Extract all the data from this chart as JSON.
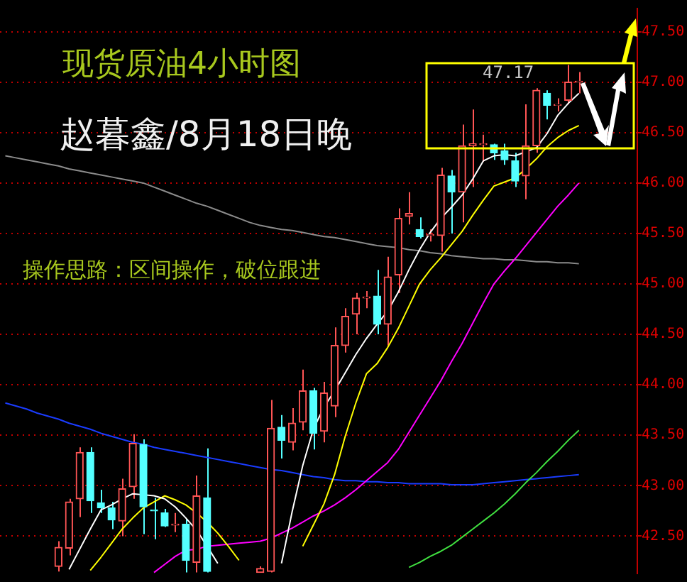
{
  "chart_data": {
    "type": "candlestick",
    "title": "现货原油4小时图",
    "subtitle": "赵暮鑫/8月18日晚",
    "annotations": [
      "操作思路：区间操作，破位跟进",
      "47.17"
    ],
    "categories": [
      null,
      null,
      null,
      null,
      null,
      null,
      null,
      null,
      null,
      null,
      null,
      null,
      null,
      null,
      null,
      null,
      null,
      null,
      null,
      null,
      null,
      null,
      null,
      null,
      null,
      null,
      null,
      null,
      null,
      null,
      null,
      null,
      null,
      null,
      null,
      null,
      null,
      null,
      null,
      null,
      null,
      null,
      null,
      null,
      null,
      null,
      null,
      null,
      null,
      null,
      null,
      null,
      null,
      null,
      null,
      null,
      null,
      null,
      null,
      null
    ],
    "ohlc": [
      null,
      null,
      null,
      null,
      null,
      [
        42.2,
        42.45,
        42.15,
        42.39
      ],
      [
        42.38,
        42.87,
        42.31,
        42.84
      ],
      [
        42.87,
        43.38,
        42.69,
        43.33
      ],
      [
        43.33,
        43.38,
        42.73,
        42.85
      ],
      [
        42.83,
        42.96,
        42.73,
        42.78
      ],
      [
        42.78,
        42.84,
        42.57,
        42.66
      ],
      [
        42.65,
        43.07,
        42.5,
        42.97
      ],
      [
        42.99,
        43.51,
        42.87,
        43.42
      ],
      [
        43.41,
        43.46,
        42.52,
        42.79
      ],
      [
        42.76,
        42.88,
        42.47,
        42.75
      ],
      [
        42.73,
        42.77,
        42.59,
        42.6
      ],
      [
        42.61,
        42.73,
        42.54,
        42.62
      ],
      [
        42.62,
        42.67,
        42.14,
        42.26
      ],
      [
        42.24,
        43.1,
        42.14,
        42.9
      ],
      [
        42.88,
        43.37,
        42.14,
        42.15
      ],
      null,
      null,
      null,
      null,
      [
        42.14,
        42.2,
        42.14,
        42.18
      ],
      [
        42.15,
        43.85,
        42.14,
        43.57
      ],
      [
        43.58,
        43.7,
        43.27,
        43.45
      ],
      [
        43.43,
        43.77,
        43.35,
        43.62
      ],
      [
        43.63,
        44.15,
        43.55,
        43.94
      ],
      [
        43.94,
        43.97,
        43.36,
        43.52
      ],
      [
        43.54,
        44.03,
        43.43,
        43.92
      ],
      [
        43.79,
        44.57,
        43.68,
        44.39
      ],
      [
        44.39,
        44.76,
        44.32,
        44.68
      ],
      [
        44.7,
        44.91,
        44.5,
        44.86
      ],
      [
        44.86,
        44.93,
        44.76,
        44.87
      ],
      [
        44.88,
        45.14,
        44.5,
        44.6
      ],
      [
        44.6,
        45.27,
        44.39,
        45.07
      ],
      [
        45.09,
        45.75,
        44.91,
        45.65
      ],
      [
        45.67,
        45.91,
        45.59,
        45.7
      ],
      [
        45.54,
        45.66,
        45.45,
        45.47
      ],
      [
        45.48,
        45.54,
        45.42,
        45.49
      ],
      [
        45.48,
        46.15,
        45.32,
        46.08
      ],
      [
        46.07,
        46.13,
        45.5,
        45.91
      ],
      [
        45.91,
        46.58,
        45.61,
        46.37
      ],
      [
        46.37,
        46.73,
        45.96,
        46.39
      ],
      [
        46.38,
        46.48,
        46.21,
        46.39
      ],
      [
        46.38,
        46.39,
        46.23,
        46.3
      ],
      [
        46.32,
        46.39,
        46.18,
        46.23
      ],
      [
        46.22,
        46.3,
        45.96,
        46.02
      ],
      [
        46.07,
        46.78,
        45.84,
        46.37
      ],
      [
        46.37,
        46.94,
        46.3,
        46.92
      ],
      [
        46.89,
        46.92,
        46.63,
        46.77
      ],
      [
        46.77,
        46.84,
        46.71,
        46.78
      ],
      [
        46.82,
        47.17,
        46.78,
        47.0
      ],
      [
        47.0,
        47.1,
        46.89,
        47.01
      ],
      null,
      null,
      null,
      null,
      null
    ],
    "series": [
      {
        "type": "line",
        "color": "#ffffff",
        "values": [
          null,
          null,
          null,
          null,
          null,
          null,
          42.17,
          42.37,
          42.57,
          42.76,
          42.81,
          42.87,
          42.92,
          42.91,
          42.9,
          42.87,
          42.79,
          42.68,
          42.56,
          42.4,
          42.23,
          null,
          null,
          null,
          null,
          null,
          42.23,
          42.74,
          43.2,
          43.56,
          43.78,
          43.94,
          44.12,
          44.3,
          44.46,
          44.6,
          44.73,
          44.92,
          45.14,
          45.34,
          45.51,
          45.65,
          45.76,
          45.88,
          46.04,
          46.22,
          46.27,
          46.28,
          46.27,
          46.31,
          46.35,
          46.49,
          46.67,
          46.79,
          46.89,
          null,
          null,
          null,
          null,
          null
        ]
      },
      {
        "type": "line",
        "color": "#ffff00",
        "values": [
          null,
          null,
          null,
          null,
          null,
          null,
          null,
          null,
          42.16,
          42.29,
          42.43,
          42.57,
          42.68,
          42.78,
          42.84,
          42.9,
          42.86,
          42.81,
          42.73,
          42.64,
          42.53,
          42.4,
          42.26,
          null,
          null,
          null,
          null,
          null,
          42.4,
          42.61,
          42.82,
          43.11,
          43.49,
          43.82,
          44.11,
          44.21,
          44.37,
          44.56,
          44.78,
          45.0,
          45.14,
          45.26,
          45.39,
          45.52,
          45.68,
          45.83,
          45.97,
          46.01,
          46.05,
          46.14,
          46.24,
          46.36,
          46.45,
          46.52,
          46.57,
          null,
          null,
          null,
          null,
          null
        ]
      },
      {
        "type": "line",
        "color": "#ff00ff",
        "values": [
          null,
          null,
          null,
          null,
          null,
          null,
          null,
          null,
          null,
          null,
          null,
          null,
          null,
          null,
          42.14,
          42.22,
          42.3,
          42.36,
          42.37,
          42.4,
          42.41,
          42.42,
          42.43,
          42.44,
          42.45,
          42.48,
          42.53,
          42.58,
          42.64,
          42.7,
          42.75,
          42.81,
          42.88,
          42.96,
          43.05,
          43.14,
          43.23,
          43.36,
          43.53,
          43.7,
          43.87,
          44.04,
          44.23,
          44.41,
          44.61,
          44.81,
          45.0,
          45.13,
          45.25,
          45.38,
          45.51,
          45.64,
          45.77,
          45.88,
          46.0,
          null,
          null,
          null,
          null,
          null
        ]
      },
      {
        "type": "line",
        "color": "#40e040",
        "values": [
          null,
          null,
          null,
          null,
          null,
          null,
          null,
          null,
          null,
          null,
          null,
          null,
          null,
          null,
          null,
          null,
          null,
          null,
          null,
          null,
          null,
          null,
          null,
          null,
          null,
          null,
          null,
          null,
          null,
          null,
          null,
          null,
          null,
          null,
          null,
          null,
          null,
          null,
          42.19,
          42.24,
          42.3,
          42.35,
          42.41,
          42.49,
          42.57,
          42.65,
          42.73,
          42.82,
          42.92,
          43.03,
          43.13,
          43.24,
          43.34,
          43.45,
          43.55,
          null,
          null,
          null,
          null,
          null
        ]
      },
      {
        "type": "line",
        "color": "#1a3cff",
        "values": [
          43.82,
          43.79,
          43.76,
          43.72,
          43.69,
          43.66,
          43.62,
          43.59,
          43.56,
          43.52,
          43.49,
          43.46,
          43.43,
          43.41,
          43.38,
          43.36,
          43.34,
          43.32,
          43.3,
          43.28,
          43.26,
          43.24,
          43.22,
          43.2,
          43.18,
          43.16,
          43.15,
          43.13,
          43.11,
          43.09,
          43.08,
          43.06,
          43.05,
          43.05,
          43.04,
          43.04,
          43.03,
          43.03,
          43.02,
          43.02,
          43.02,
          43.02,
          43.01,
          43.01,
          43.01,
          43.02,
          43.03,
          43.04,
          43.05,
          43.06,
          43.07,
          43.08,
          43.09,
          43.1,
          43.11,
          null,
          null,
          null,
          null,
          null
        ]
      },
      {
        "type": "line",
        "color": "#8c8c8c",
        "values": [
          46.27,
          46.25,
          46.23,
          46.21,
          46.19,
          46.17,
          46.14,
          46.12,
          46.1,
          46.08,
          46.06,
          46.04,
          46.02,
          46.0,
          45.96,
          45.92,
          45.88,
          45.84,
          45.8,
          45.77,
          45.73,
          45.69,
          45.65,
          45.61,
          45.58,
          45.56,
          45.54,
          45.53,
          45.51,
          45.49,
          45.47,
          45.46,
          45.44,
          45.42,
          45.4,
          45.38,
          45.37,
          45.36,
          45.34,
          45.33,
          45.31,
          45.3,
          45.28,
          45.27,
          45.26,
          45.25,
          45.25,
          45.24,
          45.24,
          45.23,
          45.22,
          45.22,
          45.21,
          45.21,
          45.2,
          null,
          null,
          null,
          null,
          null
        ]
      }
    ],
    "ylim": [
      42.13,
      47.73
    ],
    "yticks": [
      {
        "value": 42.5,
        "label": "42.50"
      },
      {
        "value": 43,
        "label": "43.00"
      },
      {
        "value": 43.5,
        "label": "43.50"
      },
      {
        "value": 44,
        "label": "44.00"
      },
      {
        "value": 44.5,
        "label": "44.50"
      },
      {
        "value": 45,
        "label": "45.00"
      },
      {
        "value": 45.5,
        "label": "45.50"
      },
      {
        "value": 46,
        "label": "46.00"
      },
      {
        "value": 46.5,
        "label": "46.50"
      },
      {
        "value": 47,
        "label": "47.00"
      },
      {
        "value": 47.5,
        "label": "47.50"
      }
    ],
    "grid": "y",
    "legend": false,
    "marker": "none",
    "line_style": "solid"
  }
}
